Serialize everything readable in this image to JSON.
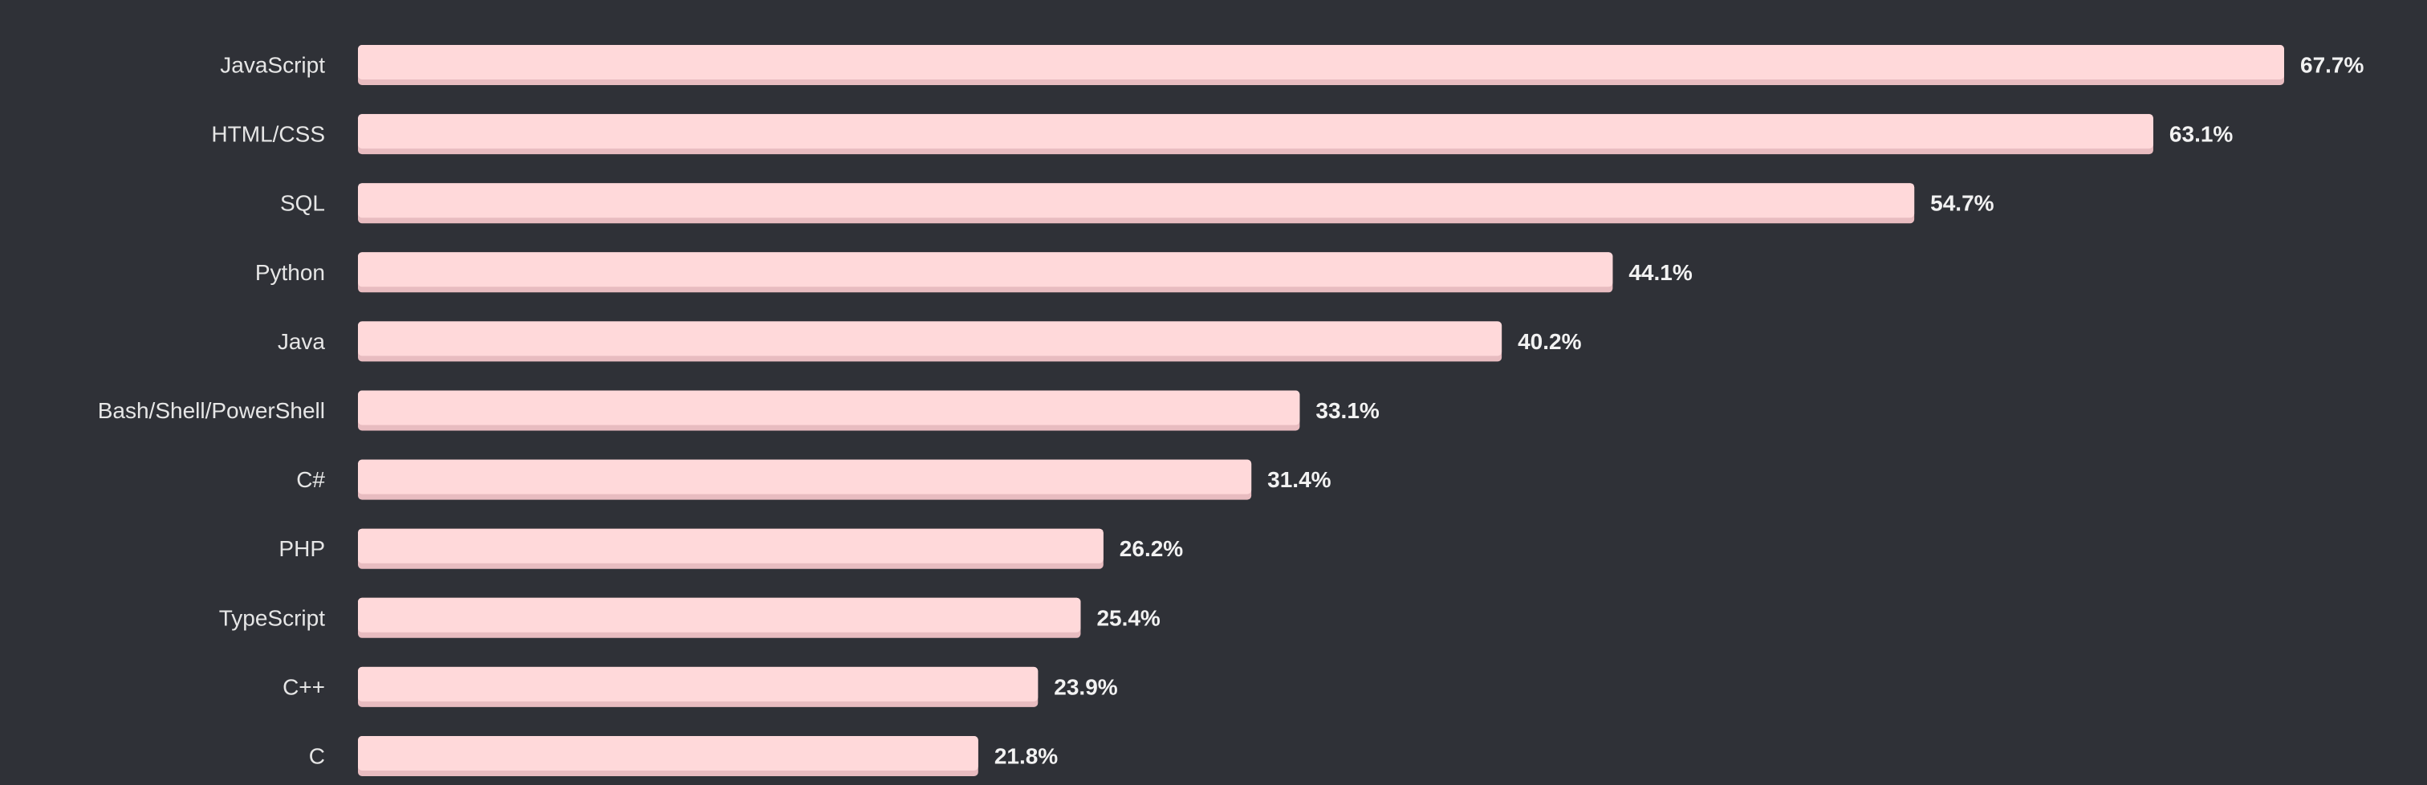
{
  "colors": {
    "background": "#2f3137",
    "bar_fill": "#ffd9da",
    "bar_shadow": "#e8bcc0",
    "label_text": "#e6e6e6",
    "value_text": "#f2f2f2"
  },
  "chart_data": {
    "type": "bar",
    "orientation": "horizontal",
    "categories": [
      "JavaScript",
      "HTML/CSS",
      "SQL",
      "Python",
      "Java",
      "Bash/Shell/PowerShell",
      "C#",
      "PHP",
      "TypeScript",
      "C++",
      "C"
    ],
    "values": [
      67.7,
      63.1,
      54.7,
      44.1,
      40.2,
      33.1,
      31.4,
      26.2,
      25.4,
      23.9,
      21.8
    ],
    "value_labels": [
      "67.7%",
      "63.1%",
      "54.7%",
      "44.1%",
      "40.2%",
      "33.1%",
      "31.4%",
      "26.2%",
      "25.4%",
      "23.9%",
      "21.8%"
    ],
    "unit": "%",
    "xlim": [
      0,
      67.7
    ],
    "grid": false,
    "legend": "none"
  }
}
